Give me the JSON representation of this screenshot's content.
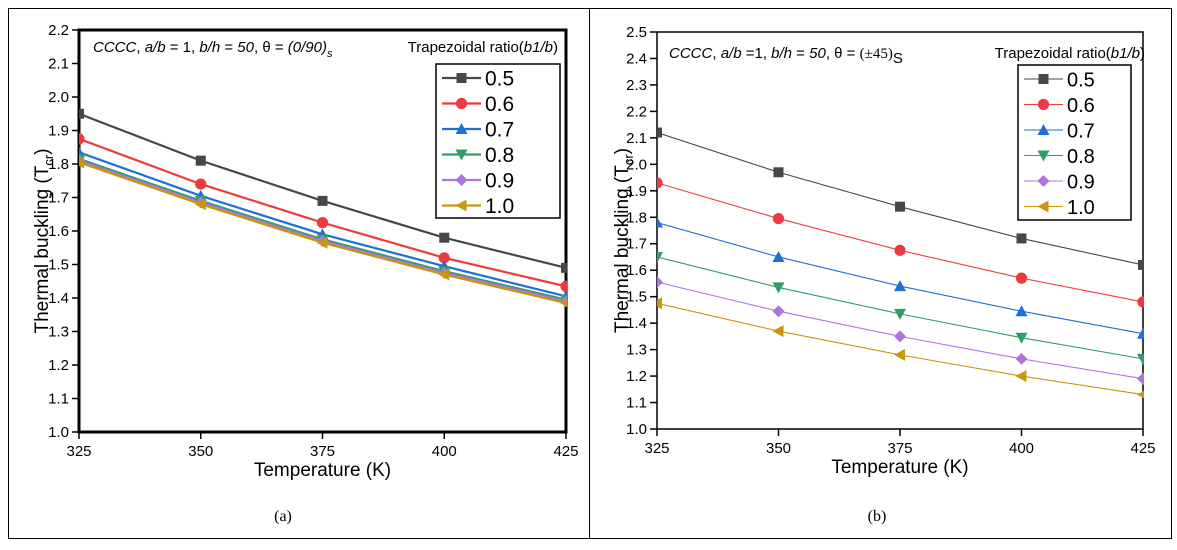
{
  "chart_data": [
    {
      "type": "line",
      "panel_label": "(a)",
      "annotation": {
        "parts": [
          {
            "text": "CCCC",
            "italic": true
          },
          {
            "text": ", ",
            "italic": false
          },
          {
            "text": "a/b",
            "italic": true
          },
          {
            "text": " = 1, ",
            "italic": false
          },
          {
            "text": "b/h",
            "italic": true
          },
          {
            "text": " = ",
            "italic": false
          },
          {
            "text": "50",
            "italic": true
          },
          {
            "text": ", θ = ",
            "italic": false
          },
          {
            "text": "(0/90)",
            "italic": true
          }
        ],
        "subscript": "s"
      },
      "legend_title": "Trapezoidal ratio(b1/b)",
      "legend_position": "top-right",
      "xlabel": "Temperature (K)",
      "ylabel": "Thermal buckling (T",
      "ylabel_sub": "cr",
      "ylabel_end": ")",
      "x": [
        325,
        350,
        375,
        400,
        425
      ],
      "xticks": [
        "325",
        "350",
        "375",
        "400",
        "425"
      ],
      "yticks": [
        "1.0",
        "1.1",
        "1.2",
        "1.3",
        "1.4",
        "1.5",
        "1.6",
        "1.7",
        "1.8",
        "1.9",
        "2.0",
        "2.1",
        "2.2"
      ],
      "xlim": [
        325,
        425
      ],
      "ylim": [
        1.0,
        2.2
      ],
      "grid": false,
      "series": [
        {
          "name": "0.5",
          "marker": "square",
          "color": "#474747",
          "values": [
            1.95,
            1.81,
            1.69,
            1.58,
            1.49
          ]
        },
        {
          "name": "0.6",
          "marker": "circle",
          "color": "#ee3a3e",
          "values": [
            1.875,
            1.74,
            1.625,
            1.52,
            1.435
          ]
        },
        {
          "name": "0.7",
          "marker": "triangle-up",
          "color": "#1f6fd8",
          "values": [
            1.835,
            1.705,
            1.59,
            1.495,
            1.405
          ]
        },
        {
          "name": "0.8",
          "marker": "triangle-down",
          "color": "#2f9e68",
          "values": [
            1.815,
            1.69,
            1.575,
            1.48,
            1.395
          ]
        },
        {
          "name": "0.9",
          "marker": "diamond",
          "color": "#b074e0",
          "values": [
            1.81,
            1.685,
            1.57,
            1.475,
            1.39
          ]
        },
        {
          "name": "1.0",
          "marker": "triangle-left",
          "color": "#c9960c",
          "values": [
            1.805,
            1.68,
            1.565,
            1.47,
            1.385
          ]
        }
      ]
    },
    {
      "type": "line",
      "panel_label": "(b)",
      "annotation": {
        "parts": [
          {
            "text": "CCCC",
            "italic": true
          },
          {
            "text": ", ",
            "italic": false
          },
          {
            "text": "a/b",
            "italic": true
          },
          {
            "text": " =1, ",
            "italic": false
          },
          {
            "text": "b/h",
            "italic": true
          },
          {
            "text": " = ",
            "italic": false
          },
          {
            "text": "50",
            "italic": true
          },
          {
            "text": ", θ = ",
            "italic": false
          },
          {
            "text": "(±45)",
            "italic": false
          }
        ],
        "subscript": "S"
      },
      "legend_title": "Trapezoidal ratio(b1/b)",
      "legend_position": "top-right",
      "xlabel": "Temperature (K)",
      "ylabel": "Thermal buckling (T",
      "ylabel_sub": "cr",
      "ylabel_end": ")",
      "x": [
        325,
        350,
        375,
        400,
        425
      ],
      "xticks": [
        "325",
        "350",
        "375",
        "400",
        "425"
      ],
      "yticks": [
        "1.0",
        "1.1",
        "1.2",
        "1.3",
        "1.4",
        "1.5",
        "1.6",
        "1.7",
        "1.8",
        "1.9",
        "2.0",
        "2.1",
        "2.2",
        "2.3",
        "2.4",
        "2.5"
      ],
      "xlim": [
        325,
        425
      ],
      "ylim": [
        1.0,
        2.5
      ],
      "grid": false,
      "series": [
        {
          "name": "0.5",
          "marker": "square",
          "color": "#474747",
          "values": [
            2.12,
            1.97,
            1.84,
            1.72,
            1.62
          ]
        },
        {
          "name": "0.6",
          "marker": "circle",
          "color": "#ee3a3e",
          "values": [
            1.93,
            1.795,
            1.675,
            1.57,
            1.48
          ]
        },
        {
          "name": "0.7",
          "marker": "triangle-up",
          "color": "#1f6fd8",
          "values": [
            1.78,
            1.65,
            1.54,
            1.445,
            1.36
          ]
        },
        {
          "name": "0.8",
          "marker": "triangle-down",
          "color": "#2f9e68",
          "values": [
            1.65,
            1.535,
            1.435,
            1.345,
            1.265
          ]
        },
        {
          "name": "0.9",
          "marker": "diamond",
          "color": "#b074e0",
          "values": [
            1.555,
            1.445,
            1.35,
            1.265,
            1.19
          ]
        },
        {
          "name": "1.0",
          "marker": "triangle-left",
          "color": "#c9960c",
          "values": [
            1.475,
            1.37,
            1.28,
            1.2,
            1.13
          ]
        }
      ]
    }
  ]
}
